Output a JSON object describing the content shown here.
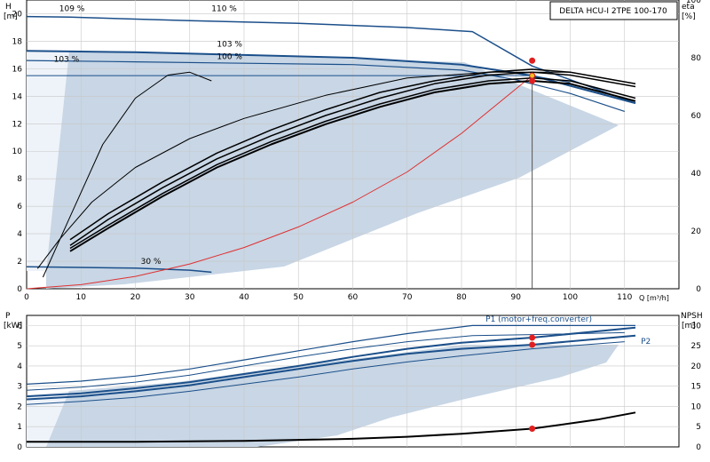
{
  "chart_data": [
    {
      "type": "line",
      "title": "DELTA HCU-I 2TPE 100-170",
      "left_axis": {
        "label_top": "H",
        "label_unit": "[m]",
        "ylim": [
          0,
          21
        ],
        "ticks": [
          0,
          2,
          4,
          6,
          8,
          10,
          12,
          14,
          16,
          18,
          20
        ]
      },
      "right_axis": {
        "label_top": "eta",
        "label_unit": "[%]",
        "ylim": [
          0,
          100
        ],
        "ticks": [
          0,
          20,
          40,
          60,
          80,
          100
        ]
      },
      "x_axis": {
        "label": "Q [m³/h]",
        "xlim": [
          0,
          120
        ],
        "ticks": [
          0,
          10,
          20,
          30,
          40,
          50,
          60,
          70,
          80,
          90,
          100,
          110
        ]
      },
      "grid": true,
      "annotations": [
        {
          "text": "109 %",
          "x": 6,
          "y": 20.2
        },
        {
          "text": "110 %",
          "x": 34,
          "y": 20.2
        },
        {
          "text": "103 %",
          "x": 35,
          "y": 17.6
        },
        {
          "text": "100 %",
          "x": 35,
          "y": 16.7
        },
        {
          "text": "103 %",
          "x": 5,
          "y": 16.5
        },
        {
          "text": "30 %",
          "x": 21,
          "y": 1.8
        }
      ],
      "series": [
        {
          "axis": "left",
          "color": "#1b4f8a",
          "width": 1.5,
          "x": [
            0,
            8,
            30,
            50,
            70,
            82,
            93,
            112
          ],
          "y": [
            19.8,
            19.75,
            19.5,
            19.3,
            19.0,
            18.7,
            16.2,
            13.5
          ]
        },
        {
          "axis": "left",
          "color": "#1b4f8a",
          "width": 2,
          "x": [
            0,
            20,
            40,
            60,
            80,
            93,
            112
          ],
          "y": [
            17.3,
            17.2,
            17.0,
            16.8,
            16.3,
            15.5,
            13.5
          ]
        },
        {
          "axis": "left",
          "color": "#1b4f8a",
          "width": 1.2,
          "x": [
            0,
            20,
            40,
            60,
            80,
            90,
            100,
            110
          ],
          "y": [
            16.6,
            16.5,
            16.4,
            16.3,
            15.9,
            15.2,
            14.2,
            12.9
          ]
        },
        {
          "axis": "left",
          "color": "#1b4f8a",
          "width": 1,
          "x": [
            0,
            20,
            40,
            60,
            80,
            93,
            100
          ],
          "y": [
            15.5,
            15.5,
            15.5,
            15.5,
            15.5,
            15.5,
            15.0
          ]
        },
        {
          "axis": "left",
          "color": "#1b4f8a",
          "width": 1.5,
          "x": [
            0,
            10,
            20,
            30,
            34
          ],
          "y": [
            1.6,
            1.55,
            1.5,
            1.35,
            1.2
          ]
        },
        {
          "axis": "left",
          "color": "#e03030",
          "width": 1,
          "x": [
            0,
            10,
            20,
            30,
            40,
            50,
            60,
            70,
            80,
            93
          ],
          "y": [
            0,
            0.3,
            0.9,
            1.8,
            3.0,
            4.5,
            6.3,
            8.5,
            11.3,
            15.5
          ]
        },
        {
          "axis": "right",
          "color": "#000000",
          "width": 1,
          "x": [
            3,
            8,
            14,
            20,
            26,
            30,
            34
          ],
          "y": [
            4,
            25,
            50,
            66,
            74,
            75,
            72
          ]
        },
        {
          "axis": "right",
          "color": "#000000",
          "width": 1,
          "x": [
            2,
            6,
            12,
            20,
            30,
            40,
            55,
            70,
            85,
            100,
            112
          ],
          "y": [
            7,
            17,
            30,
            42,
            52,
            59,
            67,
            73,
            75,
            75,
            71
          ]
        },
        {
          "axis": "right",
          "color": "#000000",
          "width": 1.5,
          "x": [
            8,
            15,
            25,
            35,
            45,
            55,
            65,
            75,
            85,
            93,
            100,
            112
          ],
          "y": [
            14,
            22,
            33,
            43,
            51,
            58,
            64,
            69,
            72,
            73,
            72,
            66
          ]
        },
        {
          "axis": "right",
          "color": "#000000",
          "width": 1.5,
          "x": [
            8,
            15,
            25,
            35,
            45,
            55,
            65,
            75,
            85,
            93,
            100,
            112
          ],
          "y": [
            15,
            24,
            35,
            45,
            53,
            60,
            66,
            71,
            74,
            75,
            74,
            70
          ]
        },
        {
          "axis": "right",
          "color": "#000000",
          "width": 1.5,
          "x": [
            8,
            15,
            25,
            35,
            45,
            55,
            65,
            75,
            85,
            93,
            100,
            112
          ],
          "y": [
            17,
            26,
            37,
            47,
            55,
            62,
            68,
            72,
            75,
            76,
            75,
            71
          ]
        },
        {
          "axis": "right",
          "color": "#000000",
          "width": 2,
          "x": [
            8,
            15,
            25,
            35,
            45,
            55,
            65,
            75,
            85,
            93,
            100,
            112
          ],
          "y": [
            13,
            21,
            32,
            42,
            50,
            57,
            63,
            68,
            71,
            72,
            71,
            65
          ]
        }
      ],
      "operating_points": [
        {
          "axis": "left",
          "x": 93,
          "y": 15.5,
          "color": "#f0c020",
          "stroke": "#d02020"
        },
        {
          "axis": "right",
          "x": 93,
          "y": 79,
          "color": "#e02020",
          "stroke": "#e02020"
        },
        {
          "axis": "right",
          "x": 93,
          "y": 72,
          "color": "#e02020",
          "stroke": "#e02020"
        }
      ],
      "vline_x": 93
    },
    {
      "type": "line",
      "left_axis": {
        "label_top": "P",
        "label_unit": "[kW]",
        "ylim": [
          0,
          6.5
        ],
        "ticks": [
          0,
          1,
          2,
          3,
          4,
          5,
          6
        ]
      },
      "right_axis": {
        "label_top": "NPSH",
        "label_unit": "[m]",
        "ylim": [
          0,
          32.5
        ],
        "ticks": [
          0,
          5,
          10,
          15,
          20,
          25,
          30
        ]
      },
      "x_axis": {
        "xlim": [
          0,
          120
        ],
        "ticks": [
          0,
          10,
          20,
          30,
          40,
          50,
          60,
          70,
          80,
          90,
          100,
          110
        ]
      },
      "grid": true,
      "labels": [
        {
          "text": "P1 (motor+freq.converter)",
          "x": 104,
          "y": 6.2
        },
        {
          "text": "P2",
          "x": 113,
          "y": 5.1
        }
      ],
      "series": [
        {
          "axis": "left",
          "color": "#1b4f8a",
          "width": 1.2,
          "x": [
            0,
            10,
            20,
            30,
            40,
            50,
            60,
            70,
            82,
            112
          ],
          "y": [
            3.1,
            3.25,
            3.5,
            3.85,
            4.3,
            4.75,
            5.2,
            5.6,
            6.0,
            6.0
          ]
        },
        {
          "axis": "left",
          "color": "#1b4f8a",
          "width": 1,
          "x": [
            0,
            10,
            20,
            30,
            40,
            50,
            60,
            70,
            82,
            93,
            110
          ],
          "y": [
            2.8,
            2.95,
            3.2,
            3.55,
            4.0,
            4.45,
            4.85,
            5.2,
            5.5,
            5.55,
            5.65
          ]
        },
        {
          "axis": "left",
          "color": "#1b4f8a",
          "width": 2,
          "x": [
            0,
            10,
            20,
            30,
            40,
            50,
            60,
            70,
            80,
            93,
            112
          ],
          "y": [
            2.5,
            2.65,
            2.9,
            3.2,
            3.6,
            4.0,
            4.45,
            4.85,
            5.15,
            5.4,
            5.9
          ]
        },
        {
          "axis": "left",
          "color": "#1b4f8a",
          "width": 2,
          "x": [
            0,
            10,
            20,
            30,
            40,
            50,
            60,
            70,
            80,
            93,
            112
          ],
          "y": [
            2.35,
            2.5,
            2.75,
            3.05,
            3.45,
            3.85,
            4.25,
            4.6,
            4.85,
            5.05,
            5.5
          ]
        },
        {
          "axis": "left",
          "color": "#1b4f8a",
          "width": 1,
          "x": [
            0,
            10,
            20,
            30,
            40,
            50,
            60,
            70,
            80,
            93,
            110
          ],
          "y": [
            2.1,
            2.25,
            2.45,
            2.75,
            3.1,
            3.45,
            3.85,
            4.2,
            4.5,
            4.85,
            5.2
          ]
        },
        {
          "axis": "left",
          "color": "#000000",
          "width": 2,
          "x": [
            0,
            20,
            40,
            60,
            70,
            80,
            93,
            105,
            112
          ],
          "y": [
            0.25,
            0.25,
            0.3,
            0.4,
            0.5,
            0.65,
            0.9,
            1.35,
            1.7
          ]
        }
      ],
      "operating_points": [
        {
          "axis": "left",
          "x": 93,
          "y": 5.4,
          "color": "#e02020",
          "stroke": "#e02020"
        },
        {
          "axis": "left",
          "x": 93,
          "y": 5.05,
          "color": "#e02020",
          "stroke": "#e02020"
        },
        {
          "axis": "left",
          "x": 93,
          "y": 0.9,
          "color": "#e02020",
          "stroke": "#e02020"
        }
      ]
    }
  ]
}
